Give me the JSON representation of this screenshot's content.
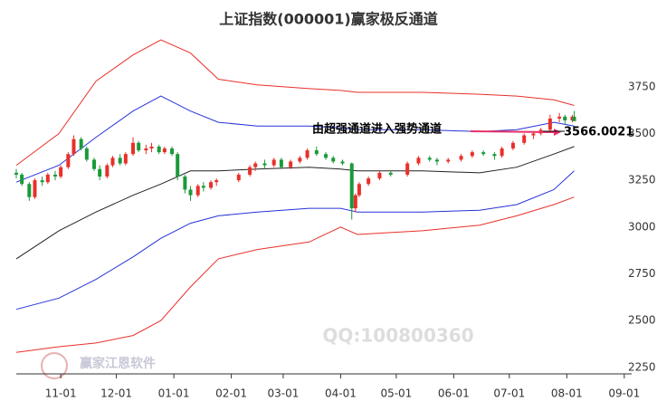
{
  "chart_data": {
    "type": "candlestick",
    "title": "上证指数(000001)赢家极反通道",
    "annotation": "由超强通道进入强势通道",
    "watermarks": [
      "QQ:100800360",
      "赢家江恩软件"
    ],
    "up_color": "#e8302a",
    "down_color": "#1a9a3a",
    "xlim": [
      "10-08",
      "09-05"
    ],
    "xticks": [
      "11-01",
      "12-01",
      "01-01",
      "02-01",
      "03-01",
      "04-01",
      "05-01",
      "06-01",
      "07-01",
      "08-01",
      "09-01"
    ],
    "ylim": [
      2215,
      4020
    ],
    "yticks": [
      2250,
      2500,
      2750,
      3000,
      3250,
      3500,
      3750
    ],
    "x": [
      "10-08",
      "10-11",
      "10-15",
      "10-18",
      "10-22",
      "10-25",
      "10-29",
      "11-01",
      "11-05",
      "11-08",
      "11-12",
      "11-15",
      "11-19",
      "11-22",
      "11-26",
      "11-29",
      "12-03",
      "12-06",
      "12-10",
      "12-13",
      "12-17",
      "12-20",
      "12-24",
      "12-27",
      "12-31",
      "01-03",
      "01-07",
      "01-10",
      "01-14",
      "01-17",
      "01-21",
      "01-24",
      "02-05",
      "02-11",
      "02-14",
      "02-19",
      "02-24",
      "02-28",
      "03-05",
      "03-10",
      "03-14",
      "03-19",
      "03-24",
      "03-28",
      "04-02",
      "04-07",
      "04-09",
      "04-11",
      "04-16",
      "04-22",
      "04-28",
      "05-07",
      "05-13",
      "05-19",
      "05-23",
      "05-29",
      "06-05",
      "06-11",
      "06-17",
      "06-23",
      "06-27",
      "07-03",
      "07-09",
      "07-14",
      "07-18",
      "07-23",
      "07-28",
      "07-31",
      "08-04",
      "08-05"
    ],
    "open": [
      3290,
      3280,
      3230,
      3160,
      3250,
      3240,
      3280,
      3270,
      3320,
      3390,
      3470,
      3420,
      3360,
      3310,
      3270,
      3330,
      3370,
      3340,
      3390,
      3450,
      3410,
      3420,
      3430,
      3400,
      3420,
      3390,
      3270,
      3200,
      3170,
      3220,
      3210,
      3240,
      3250,
      3280,
      3320,
      3340,
      3330,
      3360,
      3320,
      3350,
      3370,
      3410,
      3390,
      3370,
      3350,
      3340,
      3100,
      3170,
      3230,
      3260,
      3290,
      3280,
      3340,
      3370,
      3360,
      3350,
      3360,
      3380,
      3400,
      3390,
      3380,
      3420,
      3450,
      3490,
      3500,
      3520,
      3580,
      3590,
      3570,
      3590
    ],
    "high": [
      3310,
      3290,
      3240,
      3260,
      3270,
      3290,
      3300,
      3330,
      3400,
      3490,
      3480,
      3430,
      3370,
      3330,
      3340,
      3380,
      3390,
      3400,
      3480,
      3460,
      3440,
      3450,
      3440,
      3430,
      3430,
      3400,
      3280,
      3220,
      3230,
      3240,
      3250,
      3260,
      3290,
      3330,
      3350,
      3360,
      3370,
      3370,
      3360,
      3380,
      3420,
      3430,
      3400,
      3380,
      3360,
      3345,
      3180,
      3240,
      3270,
      3300,
      3300,
      3350,
      3380,
      3380,
      3370,
      3370,
      3390,
      3410,
      3410,
      3400,
      3430,
      3460,
      3500,
      3510,
      3530,
      3600,
      3610,
      3600,
      3600,
      3620
    ],
    "low": [
      3260,
      3220,
      3140,
      3150,
      3220,
      3230,
      3250,
      3260,
      3310,
      3380,
      3410,
      3350,
      3300,
      3250,
      3260,
      3320,
      3330,
      3330,
      3380,
      3400,
      3390,
      3400,
      3390,
      3390,
      3380,
      3250,
      3180,
      3140,
      3160,
      3190,
      3200,
      3220,
      3240,
      3270,
      3300,
      3310,
      3320,
      3310,
      3310,
      3340,
      3360,
      3380,
      3360,
      3340,
      3330,
      3040,
      3080,
      3160,
      3220,
      3250,
      3270,
      3270,
      3330,
      3350,
      3330,
      3340,
      3350,
      3370,
      3380,
      3360,
      3370,
      3410,
      3440,
      3470,
      3490,
      3510,
      3560,
      3550,
      3560,
      3570
    ],
    "close": [
      3280,
      3230,
      3160,
      3250,
      3240,
      3280,
      3270,
      3320,
      3390,
      3470,
      3420,
      3360,
      3310,
      3270,
      3330,
      3370,
      3340,
      3390,
      3450,
      3410,
      3420,
      3430,
      3400,
      3420,
      3390,
      3270,
      3200,
      3170,
      3220,
      3210,
      3240,
      3250,
      3280,
      3320,
      3340,
      3330,
      3360,
      3320,
      3350,
      3370,
      3410,
      3390,
      3370,
      3350,
      3340,
      3100,
      3170,
      3230,
      3260,
      3290,
      3280,
      3340,
      3370,
      3360,
      3350,
      3360,
      3380,
      3400,
      3390,
      3380,
      3420,
      3450,
      3490,
      3500,
      3520,
      3580,
      3590,
      3570,
      3590,
      3566.0021
    ],
    "band_x": [
      "10-08",
      "10-31",
      "11-20",
      "12-10",
      "12-25",
      "01-10",
      "01-25",
      "02-15",
      "03-15",
      "04-01",
      "04-10",
      "05-15",
      "06-15",
      "07-05",
      "07-25",
      "08-05"
    ],
    "bands": [
      {
        "color": "#e8302a",
        "values": [
          3330,
          3500,
          3780,
          3920,
          4000,
          3930,
          3790,
          3760,
          3740,
          3730,
          3720,
          3720,
          3710,
          3700,
          3680,
          3650
        ]
      },
      {
        "color": "#2633d6",
        "values": [
          3240,
          3330,
          3480,
          3620,
          3700,
          3620,
          3560,
          3540,
          3540,
          3530,
          3520,
          3520,
          3510,
          3520,
          3560,
          3540
        ]
      },
      {
        "color": "#222222",
        "values": [
          2830,
          2980,
          3080,
          3170,
          3230,
          3300,
          3300,
          3310,
          3320,
          3310,
          3300,
          3300,
          3290,
          3320,
          3390,
          3430
        ]
      },
      {
        "color": "#2633d6",
        "values": [
          2560,
          2620,
          2720,
          2840,
          2940,
          3020,
          3060,
          3080,
          3100,
          3100,
          3080,
          3080,
          3090,
          3120,
          3200,
          3300
        ]
      },
      {
        "color": "#e8302a",
        "values": [
          2330,
          2360,
          2380,
          2420,
          2500,
          2680,
          2830,
          2880,
          2920,
          3000,
          2960,
          2980,
          3010,
          3060,
          3120,
          3160
        ]
      }
    ]
  }
}
